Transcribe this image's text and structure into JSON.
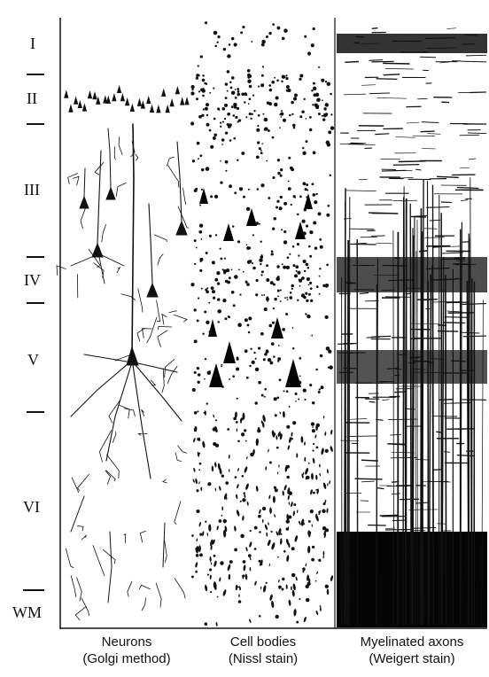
{
  "layers": [
    {
      "id": "layer-1",
      "label": "I"
    },
    {
      "id": "layer-2",
      "label": "II"
    },
    {
      "id": "layer-3",
      "label": "III"
    },
    {
      "id": "layer-4",
      "label": "IV"
    },
    {
      "id": "layer-5",
      "label": "V"
    },
    {
      "id": "layer-6",
      "label": "VI"
    },
    {
      "id": "white-matter",
      "label": "WM"
    }
  ],
  "panels": [
    {
      "id": "golgi",
      "line1": "Neurons",
      "line2": "(Golgi method)"
    },
    {
      "id": "nissl",
      "line1": "Cell bodies",
      "line2": "(Nissl stain)"
    },
    {
      "id": "weigert",
      "line1": "Myelinated axons",
      "line2": "(Weigert stain)"
    }
  ],
  "colors": {
    "ink": "#111111",
    "paper": "#ffffff",
    "stain": "#050505"
  }
}
